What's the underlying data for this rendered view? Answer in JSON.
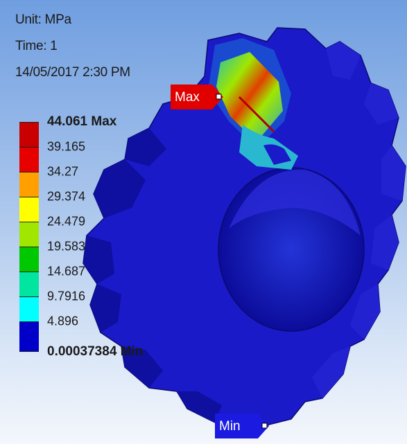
{
  "result_info": {
    "unit": "Unit: MPa",
    "time": "Time: 1",
    "date": "14/05/2017 2:30 PM"
  },
  "legend": {
    "entries": [
      {
        "label": "44.061 Max",
        "color": "#c80000",
        "bold": true
      },
      {
        "label": "39.165",
        "color": "#e60000"
      },
      {
        "label": "34.27",
        "color": "#ffa000"
      },
      {
        "label": "29.374",
        "color": "#ffff00"
      },
      {
        "label": "24.479",
        "color": "#a0e600"
      },
      {
        "label": "19.583",
        "color": "#00c800"
      },
      {
        "label": "14.687",
        "color": "#00e6a0"
      },
      {
        "label": "9.7916",
        "color": "#00ffff"
      },
      {
        "label": "4.896",
        "color": "#00a0e6"
      },
      {
        "label": "0.00037384 Min",
        "color": "#0000c8",
        "bold": true
      }
    ]
  },
  "probes": {
    "max_label": "Max",
    "min_label": "Min",
    "max_color": "#e00000",
    "min_color": "#1a1ae0"
  },
  "model": {
    "description_icon": "gear-icon",
    "base_color": "#1414c8"
  }
}
